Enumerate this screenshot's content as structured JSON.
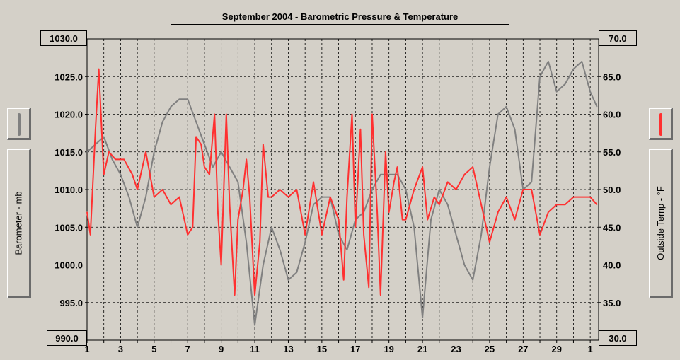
{
  "title": "September 2004 - Barometric Pressure & Temperature",
  "colors": {
    "pressure": "#808080",
    "temperature": "#ff3030",
    "plot_bg": "#d4d0c8",
    "grid": "#000000"
  },
  "left_axis": {
    "label": "Barometer - mb",
    "top_value": "1030.0",
    "bottom_value": "990.0",
    "ticks": [
      "1025.0",
      "1020.0",
      "1015.0",
      "1010.0",
      "1005.0",
      "1000.0",
      "995.0"
    ]
  },
  "right_axis": {
    "label": "Outside Temp - °F",
    "top_value": "70.0",
    "bottom_value": "30.0",
    "ticks": [
      "65.0",
      "60.0",
      "55.0",
      "50.0",
      "45.0",
      "40.0",
      "35.0"
    ]
  },
  "chart_data": {
    "type": "line",
    "title": "September 2004 - Barometric Pressure & Temperature",
    "xlabel": "",
    "x_ticks": [
      "1",
      "3",
      "5",
      "7",
      "9",
      "11",
      "13",
      "15",
      "17",
      "19",
      "21",
      "23",
      "25",
      "27",
      "29",
      "1"
    ],
    "xlim": [
      1,
      31.5
    ],
    "left_ylim": [
      990,
      1030
    ],
    "right_ylim": [
      30,
      70
    ],
    "grid": true,
    "series": [
      {
        "name": "Barometer - mb",
        "axis": "left",
        "color": "#808080",
        "x": [
          1,
          1.5,
          2,
          2.5,
          3,
          3.5,
          4,
          4.5,
          5,
          5.5,
          6,
          6.5,
          7,
          7.5,
          8,
          8.5,
          9,
          9.5,
          10,
          10.5,
          11,
          11.5,
          12,
          12.5,
          13,
          13.5,
          14,
          14.5,
          15,
          15.5,
          16,
          16.5,
          17,
          17.5,
          18,
          18.5,
          19,
          19.5,
          20,
          20.5,
          21,
          21.5,
          22,
          22.5,
          23,
          23.5,
          24,
          24.5,
          25,
          25.5,
          26,
          26.5,
          27,
          27.5,
          28,
          28.5,
          29,
          29.5,
          30,
          30.5,
          31,
          31.4
        ],
        "values": [
          1015,
          1016,
          1017,
          1014,
          1012,
          1009,
          1005,
          1009,
          1015,
          1019,
          1021,
          1022,
          1022,
          1019,
          1016,
          1013,
          1015,
          1013,
          1011,
          1003,
          992,
          1000,
          1005,
          1002,
          998,
          999,
          1003,
          1008,
          1009,
          1009,
          1004,
          1002,
          1006,
          1007,
          1010,
          1012,
          1012,
          1012,
          1010,
          1005,
          993,
          1006,
          1010,
          1008,
          1004,
          1000,
          998,
          1004,
          1013,
          1020,
          1021,
          1018,
          1010,
          1011,
          1025,
          1027,
          1023,
          1024,
          1026,
          1027,
          1023,
          1021
        ]
      },
      {
        "name": "Outside Temp - °F",
        "axis": "right",
        "color": "#ff3030",
        "x": [
          1,
          1.2,
          1.5,
          1.7,
          2,
          2.3,
          2.7,
          3.2,
          3.7,
          4,
          4.5,
          5,
          5.5,
          6,
          6.5,
          7,
          7.3,
          7.5,
          7.8,
          8,
          8.3,
          8.6,
          8.8,
          9,
          9.3,
          9.5,
          9.8,
          10,
          10.3,
          10.5,
          10.7,
          11,
          11.3,
          11.5,
          11.8,
          12,
          12.5,
          13,
          13.5,
          14,
          14.5,
          15,
          15.5,
          16,
          16.3,
          16.5,
          16.8,
          17,
          17.3,
          17.5,
          17.8,
          18,
          18.3,
          18.5,
          18.8,
          19,
          19.3,
          19.5,
          19.8,
          20,
          20.5,
          21,
          21.3,
          21.7,
          22,
          22.5,
          23,
          23.5,
          24,
          24.5,
          25,
          25.5,
          26,
          26.5,
          27,
          27.5,
          28,
          28.5,
          29,
          29.5,
          30,
          30.5,
          31,
          31.4
        ],
        "values": [
          47,
          44,
          58,
          66,
          52,
          55,
          54,
          54,
          52,
          50,
          55,
          49,
          50,
          48,
          49,
          44,
          45,
          57,
          56,
          53,
          52,
          60,
          47,
          40,
          60,
          48,
          36,
          46,
          50,
          54,
          49,
          36,
          43,
          56,
          49,
          49,
          50,
          49,
          50,
          44,
          51,
          44,
          49,
          46,
          38,
          49,
          60,
          45,
          58,
          44,
          37,
          60,
          47,
          36,
          55,
          47,
          51,
          53,
          46,
          46,
          50,
          53,
          46,
          49,
          48,
          51,
          50,
          52,
          53,
          48,
          43,
          47,
          49,
          46,
          50,
          50,
          44,
          47,
          48,
          48,
          49,
          49,
          49,
          48
        ]
      }
    ]
  }
}
